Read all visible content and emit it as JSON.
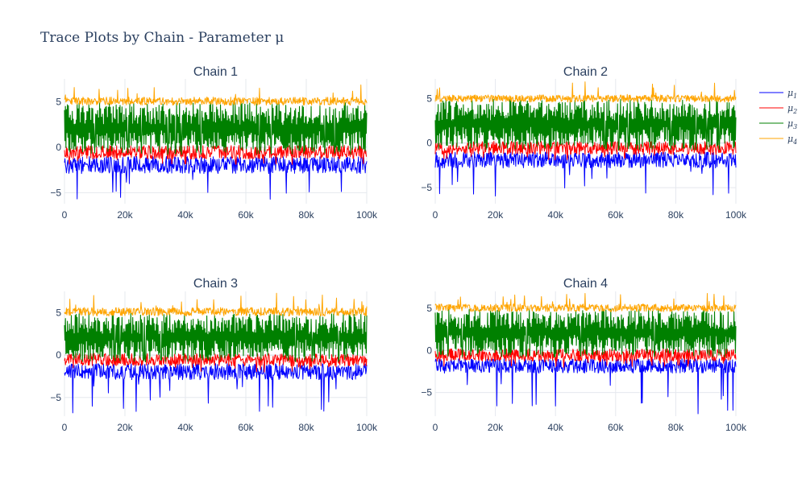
{
  "figure": {
    "title": "Trace Plots by Chain - Parameter μ"
  },
  "chart_data": [
    {
      "type": "line",
      "subplot_title": "Chain 1",
      "x_range": [
        0,
        100000
      ],
      "y_range": [
        -6.2,
        7.5
      ],
      "xticks": [
        0,
        20000,
        40000,
        60000,
        80000,
        100000
      ],
      "xtick_labels": [
        "0",
        "20k",
        "40k",
        "60k",
        "80k",
        "100k"
      ],
      "yticks": [
        -5,
        0,
        5
      ],
      "ytick_labels": [
        "−5",
        "0",
        "5"
      ],
      "series": [
        {
          "name": "μ1",
          "color": "#0000ff",
          "center": -1.5,
          "band": [
            -2.9,
            -1.0
          ],
          "min": -6.0
        },
        {
          "name": "μ2",
          "color": "#ff0000",
          "center": -0.5,
          "band": [
            -1.3,
            0.2
          ],
          "min": -2.0
        },
        {
          "name": "μ3",
          "color": "#008000",
          "center": 2.0,
          "band": [
            -0.6,
            4.9
          ],
          "min": -0.8
        },
        {
          "name": "μ4",
          "color": "#ffa500",
          "center": 5.0,
          "band": [
            4.6,
            5.5
          ],
          "max": 6.9
        }
      ]
    },
    {
      "type": "line",
      "subplot_title": "Chain 2",
      "x_range": [
        0,
        100000
      ],
      "y_range": [
        -6.8,
        7.2
      ],
      "xticks": [
        0,
        20000,
        40000,
        60000,
        80000,
        100000
      ],
      "xtick_labels": [
        "0",
        "20k",
        "40k",
        "60k",
        "80k",
        "100k"
      ],
      "yticks": [
        -5,
        0,
        5
      ],
      "ytick_labels": [
        "−5",
        "0",
        "5"
      ],
      "series": [
        {
          "name": "μ1",
          "color": "#0000ff",
          "center": -1.5,
          "band": [
            -2.8,
            -1.0
          ],
          "min": -6.6
        },
        {
          "name": "μ2",
          "color": "#ff0000",
          "center": -0.5,
          "band": [
            -1.3,
            0.2
          ],
          "min": -2.0
        },
        {
          "name": "μ3",
          "color": "#008000",
          "center": 2.0,
          "band": [
            -0.6,
            4.9
          ],
          "min": -0.8
        },
        {
          "name": "μ4",
          "color": "#ffa500",
          "center": 5.0,
          "band": [
            4.6,
            5.4
          ],
          "max": 7.0
        }
      ]
    },
    {
      "type": "line",
      "subplot_title": "Chain 3",
      "x_range": [
        0,
        100000
      ],
      "y_range": [
        -7.2,
        7.5
      ],
      "xticks": [
        0,
        20000,
        40000,
        60000,
        80000,
        100000
      ],
      "xtick_labels": [
        "0",
        "20k",
        "40k",
        "60k",
        "80k",
        "100k"
      ],
      "yticks": [
        -5,
        0,
        5
      ],
      "ytick_labels": [
        "−5",
        "0",
        "5"
      ],
      "series": [
        {
          "name": "μ1",
          "color": "#0000ff",
          "center": -1.5,
          "band": [
            -2.9,
            -1.0
          ],
          "min": -6.9
        },
        {
          "name": "μ2",
          "color": "#ff0000",
          "center": -0.5,
          "band": [
            -1.3,
            0.2
          ],
          "min": -2.0
        },
        {
          "name": "μ3",
          "color": "#008000",
          "center": 2.0,
          "band": [
            -0.6,
            4.9
          ],
          "min": -0.8
        },
        {
          "name": "μ4",
          "color": "#ffa500",
          "center": 5.0,
          "band": [
            4.6,
            5.6
          ],
          "max": 7.3
        }
      ]
    },
    {
      "type": "line",
      "subplot_title": "Chain 4",
      "x_range": [
        0,
        100000
      ],
      "y_range": [
        -7.8,
        7.0
      ],
      "xticks": [
        0,
        20000,
        40000,
        60000,
        80000,
        100000
      ],
      "xtick_labels": [
        "0",
        "20k",
        "40k",
        "60k",
        "80k",
        "100k"
      ],
      "yticks": [
        -5,
        0,
        5
      ],
      "ytick_labels": [
        "−5",
        "0",
        "5"
      ],
      "series": [
        {
          "name": "μ1",
          "color": "#0000ff",
          "center": -1.5,
          "band": [
            -2.7,
            -1.0
          ],
          "min": -7.6
        },
        {
          "name": "μ2",
          "color": "#ff0000",
          "center": -0.5,
          "band": [
            -1.3,
            0.2
          ],
          "min": -2.0
        },
        {
          "name": "μ3",
          "color": "#008000",
          "center": 2.0,
          "band": [
            -0.6,
            4.9
          ],
          "min": -0.8
        },
        {
          "name": "μ4",
          "color": "#ffa500",
          "center": 5.0,
          "band": [
            4.6,
            5.5
          ],
          "max": 6.8
        }
      ]
    }
  ],
  "legend": {
    "position": "top-right",
    "items": [
      {
        "base": "μ",
        "sub": "1",
        "color": "#0000ff"
      },
      {
        "base": "μ",
        "sub": "2",
        "color": "#ff0000"
      },
      {
        "base": "μ",
        "sub": "3",
        "color": "#008000"
      },
      {
        "base": "μ",
        "sub": "4",
        "color": "#ffa500"
      }
    ]
  }
}
